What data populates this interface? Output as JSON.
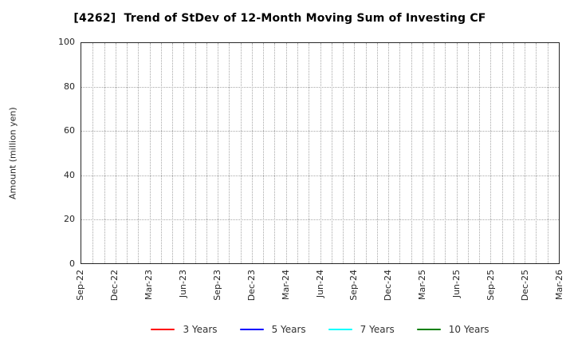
{
  "colors": {
    "frame": "#262626",
    "grid": "#a8a8a8",
    "tick_text": "#262626",
    "title_text": "#000000",
    "legend_text": "#333333"
  },
  "chart_data": {
    "type": "line",
    "title": "[4262]  Trend of StDev of 12-Month Moving Sum of Investing CF",
    "xlabel": "",
    "ylabel": "Amount (million yen)",
    "ylim": [
      0,
      100
    ],
    "y_ticks": [
      0,
      20,
      40,
      60,
      80,
      100
    ],
    "x_tick_labels": [
      "Sep-22",
      "Dec-22",
      "Mar-23",
      "Jun-23",
      "Sep-23",
      "Dec-23",
      "Mar-24",
      "Jun-24",
      "Sep-24",
      "Dec-24",
      "Mar-25",
      "Jun-25",
      "Sep-25",
      "Dec-25",
      "Mar-26"
    ],
    "x_minor_divisions_per_major": 3,
    "grid": "dotted",
    "grid_on": true,
    "legend_position": "bottom",
    "series": [
      {
        "name": "3 Years",
        "color": "#ff0000",
        "values": []
      },
      {
        "name": "5 Years",
        "color": "#0000ff",
        "values": []
      },
      {
        "name": "7 Years",
        "color": "#00ffff",
        "values": []
      },
      {
        "name": "10 Years",
        "color": "#008000",
        "values": []
      }
    ]
  }
}
